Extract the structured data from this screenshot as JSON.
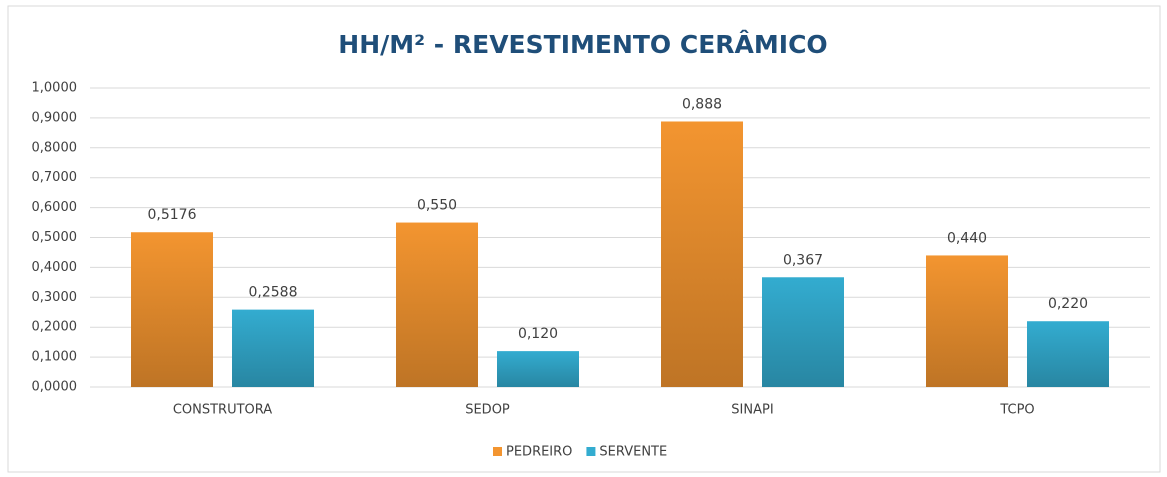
{
  "chart_data": {
    "type": "bar",
    "title": "HH/M² - REVESTIMENTO CERÂMICO",
    "categories": [
      "CONSTRUTORA",
      "SEDOP",
      "SINAPI",
      "TCPO"
    ],
    "series": [
      {
        "name": "PEDREIRO",
        "color": "#f39530",
        "values": [
          0.5176,
          0.55,
          0.888,
          0.44
        ],
        "value_labels": [
          "0,5176",
          "0,550",
          "0,888",
          "0,440"
        ]
      },
      {
        "name": "SERVENTE",
        "color": "#33acd0",
        "values": [
          0.2588,
          0.12,
          0.367,
          0.22
        ],
        "value_labels": [
          "0,2588",
          "0,120",
          "0,367",
          "0,220"
        ]
      }
    ],
    "ylim": [
      0,
      1
    ],
    "yticks": [
      {
        "value": 0,
        "label": "0,0000"
      },
      {
        "value": 0.1,
        "label": "0,1000"
      },
      {
        "value": 0.2,
        "label": "0,2000"
      },
      {
        "value": 0.3,
        "label": "0,3000"
      },
      {
        "value": 0.4,
        "label": "0,4000"
      },
      {
        "value": 0.5,
        "label": "0,5000"
      },
      {
        "value": 0.6,
        "label": "0,6000"
      },
      {
        "value": 0.7,
        "label": "0,7000"
      },
      {
        "value": 0.8,
        "label": "0,8000"
      },
      {
        "value": 0.9,
        "label": "0,9000"
      },
      {
        "value": 1,
        "label": "1,0000"
      }
    ],
    "grid": true,
    "legend": "bottom"
  }
}
